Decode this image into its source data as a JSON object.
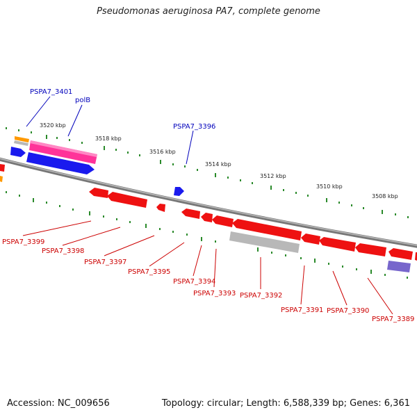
{
  "title": "Pseudomonas aeruginosa PA7, complete genome",
  "footer": {
    "accession": "Accession: NC_009656",
    "summary": "Topology: circular; Length: 6,588,339 bp; Genes: 6,361"
  },
  "colors": {
    "forward_gene": "#1a1aee",
    "reverse_gene": "#ee1111",
    "rrna": "#ff3399",
    "trna": "#ff9900",
    "pseudo": "#b8b8b8",
    "misc": "#7766cc",
    "backbone": "#888888",
    "tick": "#2a8a2a",
    "forward_label": "#0000bb",
    "reverse_label": "#cc0000"
  },
  "scale_labels": [
    "3520 kbp",
    "3518 kbp",
    "3516 kbp",
    "3514 kbp",
    "3512 kbp",
    "3510 kbp",
    "3508 kbp"
  ],
  "forward_labels": [
    "PSPA7_3401",
    "polB",
    "PSPA7_3396"
  ],
  "reverse_labels": [
    "PSPA7_3399",
    "PSPA7_3398",
    "PSPA7_3397",
    "PSPA7_3395",
    "PSPA7_3394",
    "PSPA7_3393",
    "PSPA7_3392",
    "PSPA7_3391",
    "PSPA7_3390",
    "PSPA7_3389"
  ]
}
